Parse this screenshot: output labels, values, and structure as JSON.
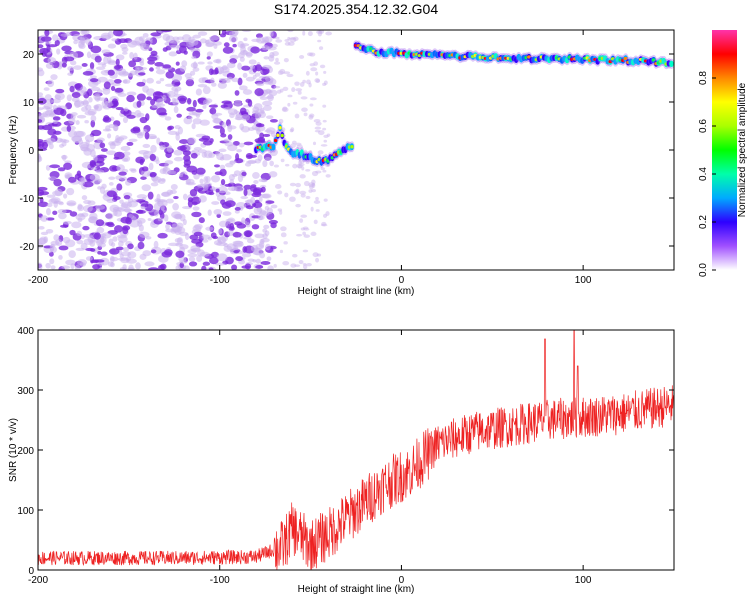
{
  "figure_title": "S174.2025.354.12.32.G04",
  "colors": {
    "snr_line": "#ee2222",
    "scatter_light": "#cbb3ee",
    "scatter_dark": "#7a28dc",
    "background": "#ffffff"
  },
  "chart_data": [
    {
      "type": "heatmap",
      "name": "spectrogram",
      "xlabel": "Height of straight line (km)",
      "ylabel": "Frequency (Hz)",
      "xlim": [
        -200,
        150
      ],
      "ylim": [
        -25,
        25
      ],
      "xticks": [
        -200,
        -100,
        0,
        100
      ],
      "yticks": [
        -20,
        -10,
        0,
        10,
        20
      ],
      "noise_region_x": [
        -200,
        -70
      ],
      "sparse_noise_x": [
        -70,
        -40
      ],
      "ridge": [
        {
          "x": -80,
          "y": 0.2
        },
        {
          "x": -75,
          "y": 0.5
        },
        {
          "x": -70,
          "y": 0.8
        },
        {
          "x": -67,
          "y": 4.5
        },
        {
          "x": -63,
          "y": 0.3
        },
        {
          "x": -60,
          "y": -0.5
        },
        {
          "x": -55,
          "y": -0.8
        },
        {
          "x": -50,
          "y": -1.6
        },
        {
          "x": -45,
          "y": -2.4
        },
        {
          "x": -40,
          "y": -2.0
        },
        {
          "x": -35,
          "y": -0.8
        },
        {
          "x": -30,
          "y": 0.5
        },
        {
          "x": -26,
          "y": 0.8
        }
      ],
      "band": [
        {
          "x": -25,
          "y": 21.5
        },
        {
          "x": -15,
          "y": 20.5
        },
        {
          "x": 0,
          "y": 20.2
        },
        {
          "x": 25,
          "y": 19.6
        },
        {
          "x": 50,
          "y": 19.2
        },
        {
          "x": 70,
          "y": 19.0
        },
        {
          "x": 90,
          "y": 19.0
        },
        {
          "x": 110,
          "y": 18.8
        },
        {
          "x": 130,
          "y": 18.6
        },
        {
          "x": 150,
          "y": 18.2
        }
      ]
    },
    {
      "type": "colorbar",
      "label": "Normalized spectral amplitude",
      "range": [
        0,
        1
      ],
      "ticks": [
        "0.0",
        "0.2",
        "0.4",
        "0.6",
        "0.8"
      ],
      "tick_values": [
        0,
        0.2,
        0.4,
        0.6,
        0.8
      ],
      "colors": [
        "#ffffff",
        "#a050ff",
        "#2d00ff",
        "#00aaff",
        "#00ffaa",
        "#00ff00",
        "#aaff00",
        "#ffff00",
        "#ff8800",
        "#ff0000",
        "#ff33aa"
      ]
    },
    {
      "type": "line",
      "name": "snr",
      "xlabel": "Height of straight line (km)",
      "ylabel": "SNR (10 * v/v)",
      "xlim": [
        -200,
        150
      ],
      "ylim": [
        0,
        400
      ],
      "xticks": [
        -200,
        -100,
        0,
        100
      ],
      "yticks": [
        0,
        100,
        200,
        300,
        400
      ],
      "trend": [
        {
          "x": -200,
          "y": 20
        },
        {
          "x": -120,
          "y": 20
        },
        {
          "x": -80,
          "y": 22
        },
        {
          "x": -65,
          "y": 40
        },
        {
          "x": -60,
          "y": 70
        },
        {
          "x": -50,
          "y": 40
        },
        {
          "x": -40,
          "y": 60
        },
        {
          "x": -25,
          "y": 100
        },
        {
          "x": -10,
          "y": 140
        },
        {
          "x": 5,
          "y": 165
        },
        {
          "x": 20,
          "y": 210
        },
        {
          "x": 40,
          "y": 230
        },
        {
          "x": 80,
          "y": 250
        },
        {
          "x": 120,
          "y": 260
        },
        {
          "x": 150,
          "y": 275
        }
      ],
      "spikes": [
        {
          "x": 79,
          "y": 385
        },
        {
          "x": 95,
          "y": 400
        },
        {
          "x": 97,
          "y": 340
        }
      ]
    }
  ]
}
